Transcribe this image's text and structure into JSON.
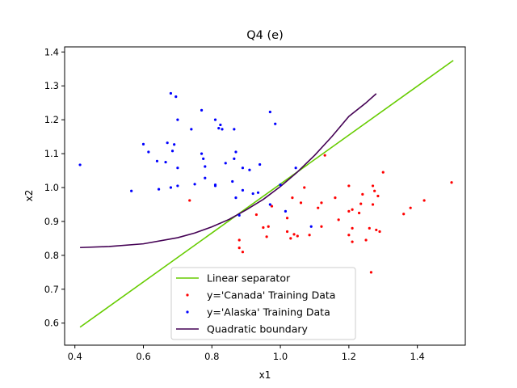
{
  "chart_data": {
    "type": "scatter",
    "title": "Q4 (e)",
    "xlabel": "x1",
    "ylabel": "x2",
    "xlim": [
      0.37,
      1.54
    ],
    "ylim": [
      0.535,
      1.415
    ],
    "xticks": [
      0.4,
      0.6,
      0.8,
      1.0,
      1.2,
      1.4
    ],
    "xtick_labels": [
      "0.4",
      "0.6",
      "0.8",
      "1.0",
      "1.2",
      "1.4"
    ],
    "yticks": [
      0.6,
      0.7,
      0.8,
      0.9,
      1.0,
      1.1,
      1.2,
      1.3,
      1.4
    ],
    "ytick_labels": [
      "0.6",
      "0.7",
      "0.8",
      "0.9",
      "1.0",
      "1.1",
      "1.2",
      "1.3",
      "1.4"
    ],
    "grid": false,
    "legend_position": "bottom-center",
    "legend": [
      {
        "label": "Linear separator",
        "kind": "line",
        "color": "#66cc00"
      },
      {
        "label": "y='Canada' Training Data",
        "kind": "marker",
        "color": "#ff0000"
      },
      {
        "label": "y='Alaska' Training Data",
        "kind": "marker",
        "color": "#0000ff"
      },
      {
        "label": "Quadratic boundary",
        "kind": "line",
        "color": "#440154"
      }
    ],
    "series": [
      {
        "name": "Linear separator",
        "kind": "line",
        "color": "#66cc00",
        "x": [
          0.415,
          1.505
        ],
        "y": [
          0.588,
          1.375
        ]
      },
      {
        "name": "Quadratic boundary",
        "kind": "line",
        "color": "#440154",
        "x": [
          0.415,
          0.5,
          0.6,
          0.7,
          0.75,
          0.8,
          0.85,
          0.9,
          0.95,
          1.0,
          1.05,
          1.1,
          1.15,
          1.2,
          1.25,
          1.28
        ],
        "y": [
          0.823,
          0.826,
          0.834,
          0.852,
          0.866,
          0.884,
          0.906,
          0.934,
          0.965,
          1.003,
          1.046,
          1.095,
          1.15,
          1.21,
          1.25,
          1.277
        ]
      },
      {
        "name": "y='Canada' Training Data",
        "kind": "scatter",
        "color": "#ff0000",
        "points": [
          [
            0.735,
            0.962
          ],
          [
            0.88,
            0.845
          ],
          [
            0.88,
            0.822
          ],
          [
            0.89,
            0.81
          ],
          [
            0.93,
            0.92
          ],
          [
            0.95,
            0.882
          ],
          [
            0.96,
            0.855
          ],
          [
            0.965,
            0.885
          ],
          [
            0.975,
            0.945
          ],
          [
            1.02,
            0.91
          ],
          [
            1.02,
            0.87
          ],
          [
            1.03,
            0.85
          ],
          [
            1.035,
            0.97
          ],
          [
            1.04,
            0.862
          ],
          [
            1.05,
            0.857
          ],
          [
            1.06,
            0.955
          ],
          [
            1.07,
            1.0
          ],
          [
            1.085,
            0.86
          ],
          [
            1.11,
            0.94
          ],
          [
            1.12,
            0.955
          ],
          [
            1.12,
            0.885
          ],
          [
            1.13,
            1.095
          ],
          [
            1.16,
            0.97
          ],
          [
            1.17,
            0.905
          ],
          [
            1.2,
            0.93
          ],
          [
            1.2,
            0.86
          ],
          [
            1.2,
            1.005
          ],
          [
            1.21,
            0.84
          ],
          [
            1.21,
            0.88
          ],
          [
            1.21,
            0.935
          ],
          [
            1.23,
            0.925
          ],
          [
            1.235,
            0.952
          ],
          [
            1.24,
            0.98
          ],
          [
            1.25,
            0.845
          ],
          [
            1.26,
            0.88
          ],
          [
            1.265,
            0.75
          ],
          [
            1.27,
            0.95
          ],
          [
            1.27,
            1.005
          ],
          [
            1.275,
            0.99
          ],
          [
            1.28,
            0.875
          ],
          [
            1.285,
            0.975
          ],
          [
            1.29,
            0.87
          ],
          [
            1.3,
            1.045
          ],
          [
            1.36,
            0.922
          ],
          [
            1.38,
            0.94
          ],
          [
            1.42,
            0.962
          ],
          [
            1.5,
            1.015
          ]
        ]
      },
      {
        "name": "y='Alaska' Training Data",
        "kind": "scatter",
        "color": "#0000ff",
        "points": [
          [
            0.415,
            1.067
          ],
          [
            0.565,
            0.99
          ],
          [
            0.6,
            1.128
          ],
          [
            0.615,
            1.105
          ],
          [
            0.64,
            1.078
          ],
          [
            0.645,
            0.995
          ],
          [
            0.665,
            1.075
          ],
          [
            0.67,
            1.132
          ],
          [
            0.68,
            1.0
          ],
          [
            0.68,
            1.278
          ],
          [
            0.685,
            1.108
          ],
          [
            0.69,
            1.127
          ],
          [
            0.695,
            1.268
          ],
          [
            0.7,
            1.2
          ],
          [
            0.7,
            1.058
          ],
          [
            0.7,
            1.005
          ],
          [
            0.74,
            1.172
          ],
          [
            0.75,
            1.01
          ],
          [
            0.77,
            1.228
          ],
          [
            0.77,
            1.1
          ],
          [
            0.775,
            1.085
          ],
          [
            0.78,
            1.028
          ],
          [
            0.78,
            1.062
          ],
          [
            0.81,
            1.2
          ],
          [
            0.81,
            1.008
          ],
          [
            0.81,
            1.005
          ],
          [
            0.82,
            1.175
          ],
          [
            0.825,
            1.185
          ],
          [
            0.83,
            1.172
          ],
          [
            0.84,
            1.072
          ],
          [
            0.86,
            1.018
          ],
          [
            0.865,
            1.172
          ],
          [
            0.865,
            1.085
          ],
          [
            0.87,
            0.97
          ],
          [
            0.87,
            1.105
          ],
          [
            0.88,
            0.918
          ],
          [
            0.89,
            1.058
          ],
          [
            0.89,
            0.992
          ],
          [
            0.91,
            1.052
          ],
          [
            0.92,
            0.982
          ],
          [
            0.935,
            0.985
          ],
          [
            0.94,
            1.068
          ],
          [
            0.97,
            0.95
          ],
          [
            0.97,
            1.223
          ],
          [
            0.985,
            1.188
          ],
          [
            1.0,
            1.008
          ],
          [
            1.015,
            0.93
          ],
          [
            1.045,
            1.058
          ],
          [
            1.09,
            0.885
          ]
        ]
      }
    ]
  }
}
